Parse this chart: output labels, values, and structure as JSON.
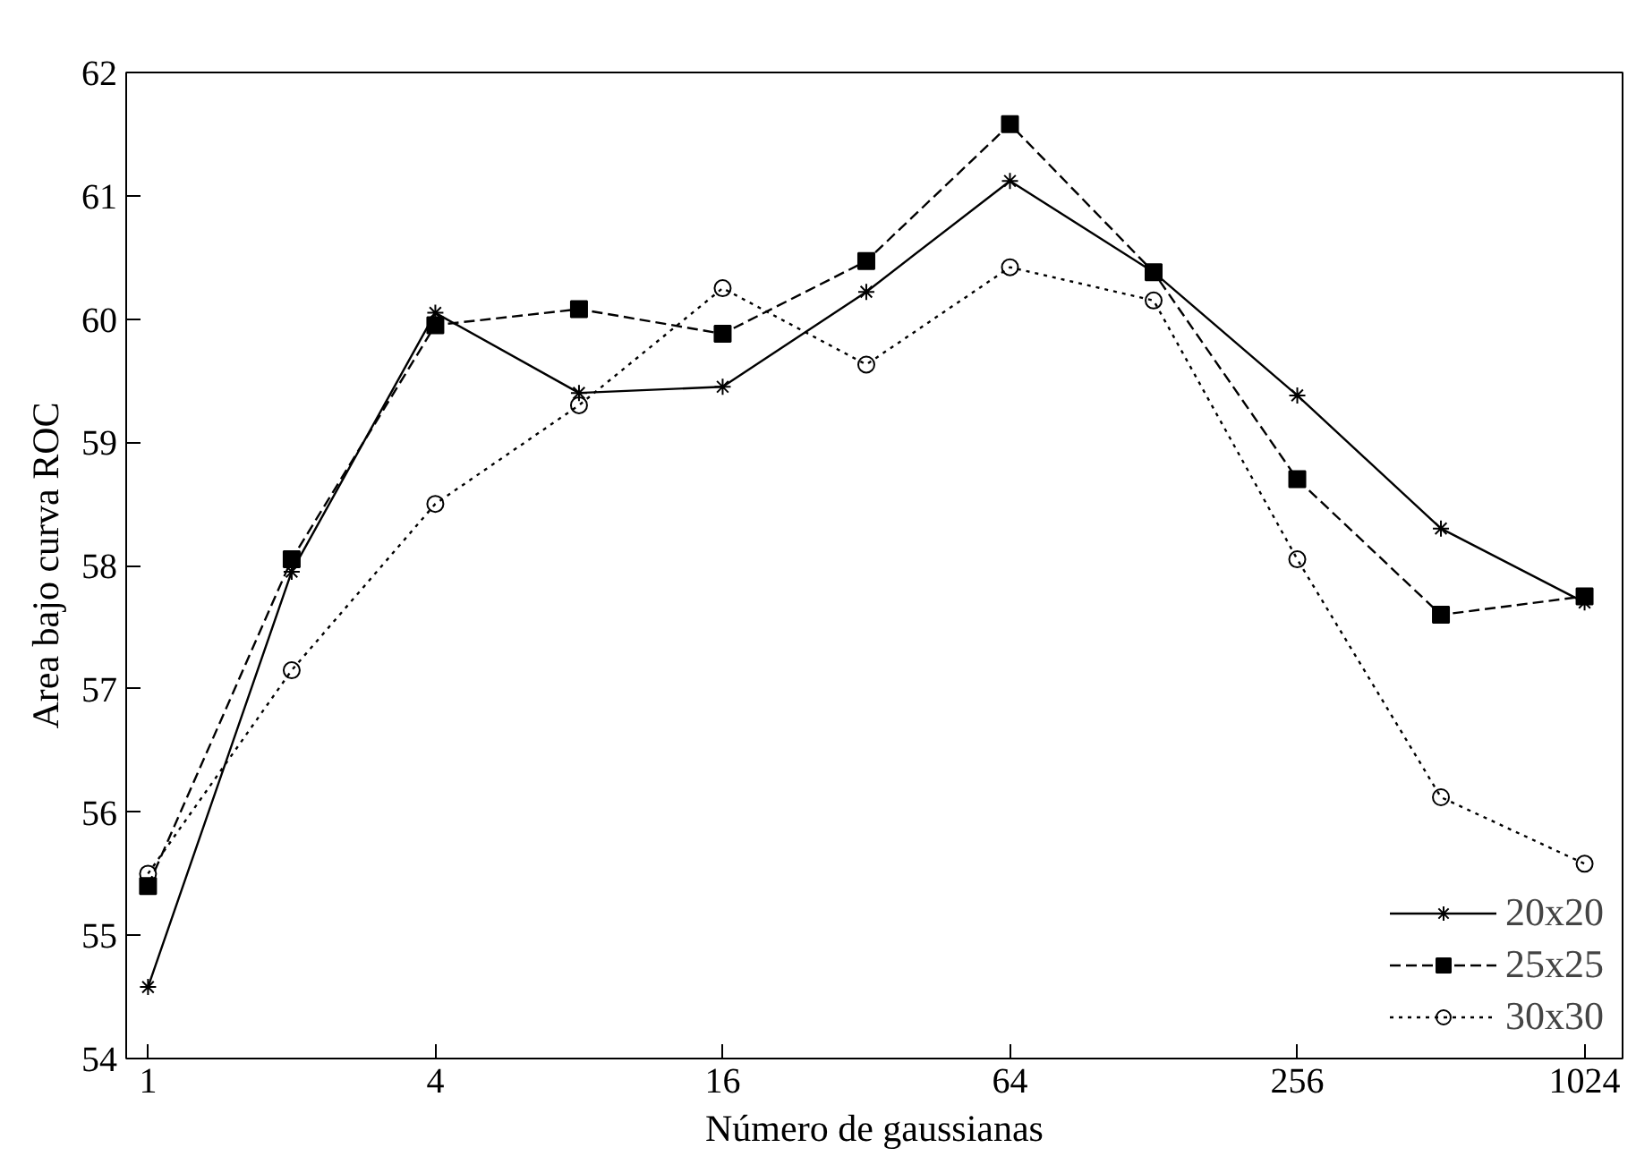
{
  "chart_data": {
    "type": "line",
    "xlabel": "Número de gaussianas",
    "ylabel": "Area bajo curva ROC",
    "x": [
      1,
      2,
      4,
      8,
      16,
      32,
      64,
      128,
      256,
      512,
      1024
    ],
    "log": "x",
    "xlim": [
      0.9,
      1230
    ],
    "xticks": [
      1,
      4,
      16,
      64,
      256,
      1024
    ],
    "ylim": [
      54,
      62
    ],
    "yticks": [
      54,
      55,
      56,
      57,
      58,
      59,
      60,
      61,
      62
    ],
    "grid": false,
    "legend": "bottom right",
    "series": [
      {
        "name": "20x20",
        "color": "#000000",
        "marker": "cross",
        "line_style": "solid",
        "values": [
          54.58,
          57.95,
          60.05,
          59.4,
          59.45,
          60.22,
          61.12,
          60.38,
          59.38,
          58.3,
          57.7
        ]
      },
      {
        "name": "25x25",
        "color": "#000000",
        "marker": "square",
        "line_style": "dashed",
        "values": [
          55.4,
          58.05,
          59.95,
          60.08,
          59.88,
          60.47,
          61.58,
          60.38,
          58.7,
          57.6,
          57.75
        ]
      },
      {
        "name": "30x30",
        "color": "#000000",
        "marker": "circle",
        "line_style": "dotted",
        "values": [
          55.5,
          57.15,
          58.5,
          59.3,
          60.25,
          59.63,
          60.42,
          60.15,
          58.05,
          56.12,
          55.58
        ]
      }
    ]
  }
}
